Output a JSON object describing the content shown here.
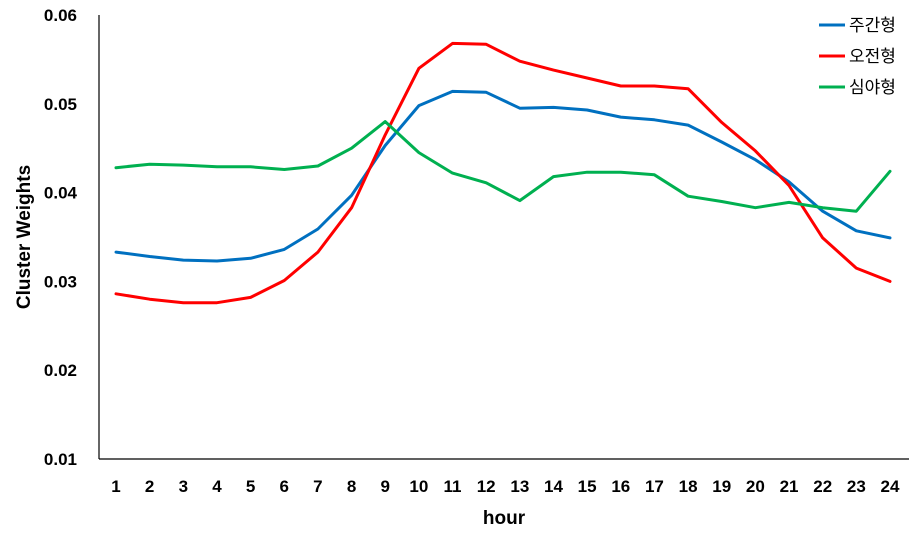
{
  "chart_data": {
    "type": "line",
    "title": "",
    "xlabel": "hour",
    "ylabel": "Cluster Weights",
    "categories": [
      "1",
      "2",
      "3",
      "4",
      "5",
      "6",
      "7",
      "8",
      "9",
      "10",
      "11",
      "12",
      "13",
      "14",
      "15",
      "16",
      "17",
      "18",
      "19",
      "20",
      "21",
      "22",
      "23",
      "24"
    ],
    "yticks": [
      "0.01",
      "0.02",
      "0.03",
      "0.04",
      "0.05",
      "0.06"
    ],
    "ylim": [
      0.01,
      0.06
    ],
    "grid": false,
    "legend_position": "top-right",
    "series": [
      {
        "name": "주간형",
        "color": "#0070C0",
        "values": [
          0.0333,
          0.0328,
          0.0324,
          0.0323,
          0.0326,
          0.0336,
          0.0359,
          0.0397,
          0.0453,
          0.0498,
          0.0514,
          0.0513,
          0.0495,
          0.0496,
          0.0493,
          0.0485,
          0.0482,
          0.0476,
          0.0457,
          0.0437,
          0.0412,
          0.0379,
          0.0357,
          0.0349
        ]
      },
      {
        "name": "오전형",
        "color": "#FF0000",
        "values": [
          0.0286,
          0.028,
          0.0276,
          0.0276,
          0.0282,
          0.0301,
          0.0333,
          0.0383,
          0.0465,
          0.054,
          0.0568,
          0.0567,
          0.0548,
          0.0538,
          0.0529,
          0.052,
          0.052,
          0.0517,
          0.0479,
          0.0447,
          0.0408,
          0.0349,
          0.0315,
          0.03
        ]
      },
      {
        "name": "심야형",
        "color": "#00B050",
        "values": [
          0.0428,
          0.0432,
          0.0431,
          0.0429,
          0.0429,
          0.0426,
          0.043,
          0.045,
          0.048,
          0.0445,
          0.0422,
          0.0411,
          0.0391,
          0.0418,
          0.0423,
          0.0423,
          0.042,
          0.0396,
          0.039,
          0.0383,
          0.0389,
          0.0383,
          0.0379,
          0.0424
        ]
      }
    ]
  }
}
